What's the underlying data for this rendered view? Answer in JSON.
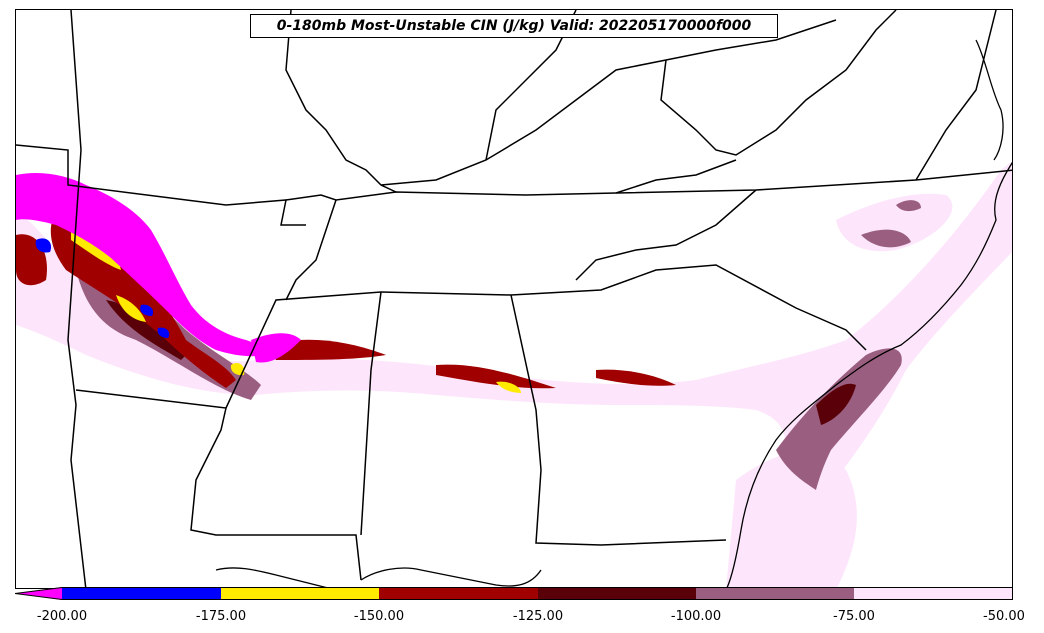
{
  "title": "0-180mb Most-Unstable CIN (J/kg) Valid: 202205170000f000",
  "colorbar": {
    "extend": "min",
    "under_color": "#ff00ff",
    "segments": [
      {
        "min": -200,
        "max": -175,
        "color": "#0000ff"
      },
      {
        "min": -175,
        "max": -150,
        "color": "#ffea00"
      },
      {
        "min": -150,
        "max": -125,
        "color": "#a00000"
      },
      {
        "min": -125,
        "max": -100,
        "color": "#5a0008"
      },
      {
        "min": -100,
        "max": -75,
        "color": "#9a5f80"
      },
      {
        "min": -75,
        "max": -50,
        "color": "#fde6fb"
      }
    ],
    "ticks": [
      "-200.00",
      "-175.00",
      "-150.00",
      "-125.00",
      "-100.00",
      "-75.00",
      "-50.00"
    ]
  }
}
